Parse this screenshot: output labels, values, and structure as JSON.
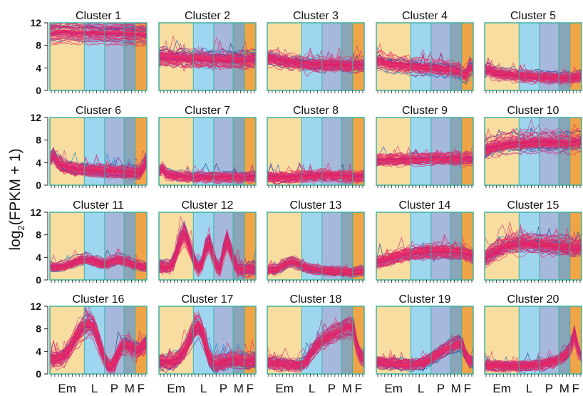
{
  "figure": {
    "ylabel_main": "log",
    "ylabel_sub": "2",
    "ylabel_rest": "(FPKM + 1)"
  },
  "stages": {
    "labels": [
      "Em",
      "L",
      "P",
      "M",
      "F"
    ],
    "colors": [
      "#f8dda0",
      "#9ed6f0",
      "#a6b8dc",
      "#8aa4b8",
      "#f0a448"
    ],
    "fractions": [
      0.355,
      0.21,
      0.2,
      0.115,
      0.12
    ]
  },
  "colors": {
    "frame": "#3bb3a3",
    "line_palette": [
      "#e6245a",
      "#e8306a",
      "#d6206e",
      "#f03060",
      "#c8368a",
      "#1d3f9a",
      "#2a6cc4",
      "#1b8fd0",
      "#7a2e98"
    ]
  },
  "chart_data": {
    "type": "line",
    "y_ticks": [
      0,
      4,
      8,
      12
    ],
    "ylim": [
      0,
      12
    ],
    "x_tick_count": 28,
    "clusters": [
      {
        "title": "Cluster 1",
        "profile": [
          10.2,
          10.3,
          10.4,
          10.4,
          10.5,
          10.5,
          10.4,
          10.4,
          10.3,
          10.3,
          10.4,
          10.3,
          10.4,
          10.3,
          10.2,
          10.3,
          10.2,
          10.3,
          10.2,
          10.2,
          10.3,
          10.2,
          10.1,
          10.2,
          10.0,
          10.2,
          10.0,
          10.1
        ],
        "spread": 0.6
      },
      {
        "title": "Cluster 2",
        "profile": [
          6.0,
          6.1,
          6.0,
          5.9,
          5.8,
          5.8,
          5.9,
          5.8,
          5.7,
          5.7,
          5.8,
          5.7,
          5.6,
          5.7,
          5.6,
          5.6,
          5.5,
          5.6,
          5.6,
          5.5,
          5.6,
          5.5,
          5.5,
          5.6,
          5.5,
          5.6,
          5.7,
          5.8
        ],
        "spread": 1.0
      },
      {
        "title": "Cluster 3",
        "profile": [
          5.6,
          5.8,
          5.6,
          5.4,
          5.3,
          5.2,
          5.1,
          5.0,
          5.0,
          4.9,
          4.8,
          4.8,
          4.7,
          4.7,
          4.6,
          4.6,
          4.5,
          4.6,
          4.5,
          4.5,
          4.6,
          4.5,
          4.4,
          4.5,
          4.4,
          4.6,
          4.5,
          4.6
        ],
        "spread": 0.9
      },
      {
        "title": "Cluster 4",
        "profile": [
          5.2,
          5.4,
          5.0,
          4.8,
          4.7,
          4.6,
          4.5,
          4.5,
          4.4,
          4.3,
          4.3,
          4.2,
          4.2,
          4.1,
          4.1,
          4.0,
          4.0,
          3.9,
          3.9,
          3.8,
          3.8,
          3.7,
          3.6,
          3.4,
          3.0,
          2.6,
          4.0,
          4.2
        ],
        "spread": 0.9
      },
      {
        "title": "Cluster 5",
        "profile": [
          3.5,
          3.6,
          3.3,
          3.1,
          3.0,
          2.9,
          2.8,
          2.8,
          2.7,
          2.6,
          2.6,
          2.5,
          2.5,
          2.4,
          2.4,
          2.4,
          2.3,
          2.3,
          2.3,
          2.2,
          2.3,
          2.2,
          2.2,
          2.3,
          2.1,
          2.2,
          2.4,
          2.6
        ],
        "spread": 0.8
      },
      {
        "title": "Cluster 6",
        "profile": [
          4.5,
          5.2,
          4.2,
          3.6,
          3.3,
          3.1,
          3.0,
          2.9,
          2.8,
          2.8,
          2.7,
          2.7,
          2.6,
          2.6,
          2.6,
          2.5,
          2.5,
          2.5,
          2.4,
          2.4,
          2.4,
          2.3,
          2.3,
          2.2,
          2.2,
          2.3,
          3.2,
          4.6
        ],
        "spread": 0.9
      },
      {
        "title": "Cluster 7",
        "profile": [
          2.4,
          3.0,
          2.1,
          1.8,
          1.7,
          1.6,
          1.6,
          1.5,
          1.5,
          1.5,
          1.4,
          1.4,
          1.5,
          1.4,
          1.4,
          1.5,
          1.4,
          1.4,
          1.5,
          1.4,
          1.4,
          1.5,
          1.4,
          1.4,
          1.5,
          1.4,
          1.5,
          1.6
        ],
        "spread": 0.7
      },
      {
        "title": "Cluster 8",
        "profile": [
          1.3,
          1.4,
          1.3,
          1.3,
          1.4,
          1.4,
          1.3,
          1.5,
          1.4,
          1.5,
          1.6,
          1.5,
          1.7,
          1.6,
          1.7,
          1.8,
          1.7,
          1.8,
          1.7,
          1.6,
          1.7,
          1.6,
          1.5,
          1.6,
          1.5,
          1.4,
          1.5,
          1.6
        ],
        "spread": 0.8
      },
      {
        "title": "Cluster 9",
        "profile": [
          4.3,
          4.4,
          4.4,
          4.4,
          4.5,
          4.5,
          4.4,
          4.5,
          4.5,
          4.5,
          4.6,
          4.5,
          4.6,
          4.6,
          4.6,
          4.7,
          4.6,
          4.7,
          4.7,
          4.6,
          4.7,
          4.7,
          4.6,
          4.7,
          4.6,
          4.7,
          4.6,
          4.7
        ],
        "spread": 0.6
      },
      {
        "title": "Cluster 10",
        "profile": [
          6.2,
          6.4,
          6.6,
          6.8,
          7.0,
          7.1,
          7.2,
          7.3,
          7.3,
          7.4,
          7.4,
          7.5,
          7.5,
          7.5,
          7.6,
          7.5,
          7.6,
          7.6,
          7.5,
          7.6,
          7.5,
          7.6,
          7.5,
          7.4,
          7.5,
          7.6,
          7.6,
          7.7
        ],
        "spread": 1.1
      },
      {
        "title": "Cluster 11",
        "profile": [
          2.4,
          2.3,
          2.3,
          2.4,
          2.5,
          2.7,
          2.9,
          3.2,
          3.4,
          3.6,
          3.7,
          3.6,
          3.4,
          3.2,
          3.0,
          2.9,
          3.0,
          3.2,
          3.4,
          3.6,
          3.5,
          3.3,
          3.1,
          2.8,
          2.6,
          2.5,
          2.4,
          2.3
        ],
        "spread": 0.6
      },
      {
        "title": "Cluster 12",
        "profile": [
          2.3,
          2.2,
          2.2,
          2.3,
          3.0,
          5.0,
          7.0,
          8.2,
          7.0,
          5.0,
          3.0,
          2.0,
          2.8,
          5.5,
          6.5,
          4.5,
          2.5,
          1.8,
          5.0,
          7.0,
          5.0,
          3.0,
          2.0,
          1.8,
          1.7,
          1.8,
          1.9,
          2.0
        ],
        "spread": 1.0
      },
      {
        "title": "Cluster 13",
        "profile": [
          1.7,
          1.8,
          1.8,
          2.0,
          2.4,
          2.8,
          3.1,
          3.2,
          3.0,
          2.7,
          2.4,
          2.2,
          2.0,
          1.9,
          1.8,
          1.7,
          1.7,
          1.6,
          1.6,
          1.5,
          1.6,
          1.5,
          1.5,
          1.4,
          1.4,
          1.5,
          1.6,
          1.6
        ],
        "spread": 0.6
      },
      {
        "title": "Cluster 14",
        "profile": [
          3.0,
          3.2,
          3.4,
          3.6,
          3.8,
          4.0,
          4.2,
          4.4,
          4.5,
          4.6,
          4.7,
          4.8,
          4.9,
          4.9,
          5.0,
          5.0,
          5.0,
          5.1,
          5.1,
          5.1,
          5.0,
          5.0,
          5.0,
          4.9,
          4.8,
          4.6,
          4.4,
          4.2
        ],
        "spread": 0.9
      },
      {
        "title": "Cluster 15",
        "profile": [
          3.8,
          4.2,
          4.6,
          5.0,
          5.4,
          5.8,
          6.0,
          6.2,
          6.3,
          6.4,
          6.4,
          6.5,
          6.4,
          6.4,
          6.3,
          6.3,
          6.2,
          6.2,
          6.1,
          6.1,
          6.0,
          6.0,
          5.9,
          5.8,
          5.7,
          5.6,
          5.8,
          6.0
        ],
        "spread": 1.1
      },
      {
        "title": "Cluster 16",
        "profile": [
          2.6,
          2.6,
          2.7,
          2.8,
          3.2,
          4.0,
          5.0,
          6.2,
          7.2,
          8.0,
          8.6,
          8.9,
          8.4,
          7.0,
          5.0,
          3.0,
          1.6,
          1.2,
          2.0,
          3.6,
          4.8,
          5.2,
          5.0,
          4.6,
          4.2,
          4.4,
          5.0,
          5.4
        ],
        "spread": 1.2
      },
      {
        "title": "Cluster 17",
        "profile": [
          2.2,
          2.2,
          2.1,
          2.2,
          2.3,
          2.6,
          3.2,
          4.2,
          5.4,
          6.8,
          8.0,
          8.8,
          7.6,
          5.2,
          3.0,
          2.0,
          1.8,
          2.0,
          2.2,
          2.4,
          2.6,
          2.6,
          2.5,
          2.4,
          2.3,
          2.3,
          2.4,
          2.5
        ],
        "spread": 1.1
      },
      {
        "title": "Cluster 18",
        "profile": [
          2.0,
          2.0,
          1.9,
          1.8,
          1.8,
          1.7,
          1.6,
          1.6,
          1.5,
          1.6,
          1.8,
          2.4,
          3.4,
          4.4,
          5.2,
          5.8,
          6.2,
          6.6,
          7.0,
          7.3,
          7.6,
          7.9,
          8.2,
          8.4,
          8.0,
          4.8,
          3.0,
          2.6
        ],
        "spread": 0.9
      },
      {
        "title": "Cluster 19",
        "profile": [
          2.0,
          2.0,
          1.9,
          1.8,
          1.8,
          1.7,
          1.7,
          1.7,
          1.6,
          1.6,
          1.6,
          1.7,
          1.8,
          1.9,
          2.2,
          2.6,
          3.0,
          3.4,
          3.8,
          4.2,
          4.6,
          4.9,
          5.2,
          5.4,
          5.0,
          3.0,
          2.2,
          2.1
        ],
        "spread": 0.8
      },
      {
        "title": "Cluster 20",
        "profile": [
          1.6,
          1.6,
          1.5,
          1.5,
          1.5,
          1.4,
          1.4,
          1.4,
          1.4,
          1.4,
          1.4,
          1.5,
          1.5,
          1.6,
          1.6,
          1.7,
          1.8,
          1.9,
          2.0,
          2.2,
          2.4,
          2.8,
          3.2,
          3.8,
          5.0,
          7.2,
          4.6,
          2.8
        ],
        "spread": 0.8
      }
    ]
  }
}
